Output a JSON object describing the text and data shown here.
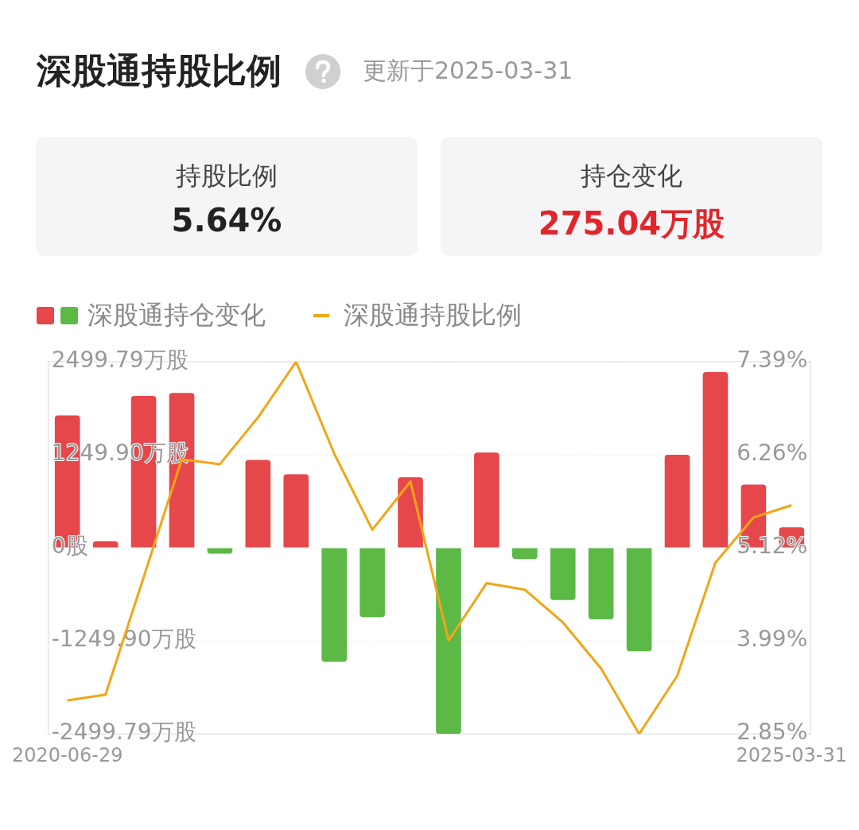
{
  "chart_data": {
    "type": "bar",
    "title": "深股通持股比例",
    "annotations": [
      "更新于2025-03-31",
      "持股比例",
      "5.64%",
      "持仓变化",
      "275.04万股"
    ],
    "categories": [
      "2020-06-29",
      null,
      null,
      null,
      null,
      null,
      null,
      null,
      null,
      null,
      null,
      null,
      null,
      null,
      null,
      null,
      null,
      null,
      null,
      "2025-03-31"
    ],
    "series": [
      {
        "name": "深股通持仓变化",
        "colors": [
          "#e5474b",
          "#e5474b",
          "#e5474b",
          "#e5474b",
          "#5cb946",
          "#e5474b",
          "#e5474b",
          "#5cb946",
          "#5cb946",
          "#e5474b",
          "#5cb946",
          "#e5474b",
          "#5cb946",
          "#5cb946",
          "#5cb946",
          "#5cb946",
          "#e5474b",
          "#e5474b",
          "#e5474b",
          "#e5474b"
        ],
        "values": [
          1780,
          90,
          2040,
          2080,
          -80,
          1180,
          990,
          -1530,
          -930,
          950,
          -2499.79,
          1280,
          -150,
          -700,
          -960,
          -1390,
          1250,
          2360,
          850,
          275.04
        ]
      },
      {
        "name": "深股通持股比例",
        "type": "line",
        "axis": "y2",
        "color": "#f2a516",
        "values": [
          3.26,
          3.33,
          4.76,
          6.2,
          6.14,
          6.71,
          7.39,
          6.27,
          5.34,
          5.93,
          3.99,
          4.69,
          4.61,
          4.21,
          3.65,
          2.85,
          3.56,
          4.94,
          5.49,
          5.64
        ]
      }
    ],
    "ylim": [
      -2499.79,
      2499.79
    ],
    "yticks": [
      {
        "value": -2499.79,
        "label": "-2499.79万股"
      },
      {
        "value": -1249.9,
        "label": "-1249.90万股"
      },
      {
        "value": 0,
        "label": "0股"
      },
      {
        "value": 1249.9,
        "label": "1249.90万股"
      },
      {
        "value": 2499.79,
        "label": "2499.79万股"
      }
    ],
    "y2lim": [
      2.85,
      7.39
    ],
    "y2ticks": [
      {
        "value": 2.85,
        "label": "2.85%"
      },
      {
        "value": 3.985,
        "label": "3.99%"
      },
      {
        "value": 5.12,
        "label": "5.12%"
      },
      {
        "value": 6.255,
        "label": "6.26%"
      },
      {
        "value": 7.39,
        "label": "7.39%"
      }
    ],
    "grid": "y",
    "legend": "top",
    "marker": "none",
    "line_style": "solid"
  }
}
